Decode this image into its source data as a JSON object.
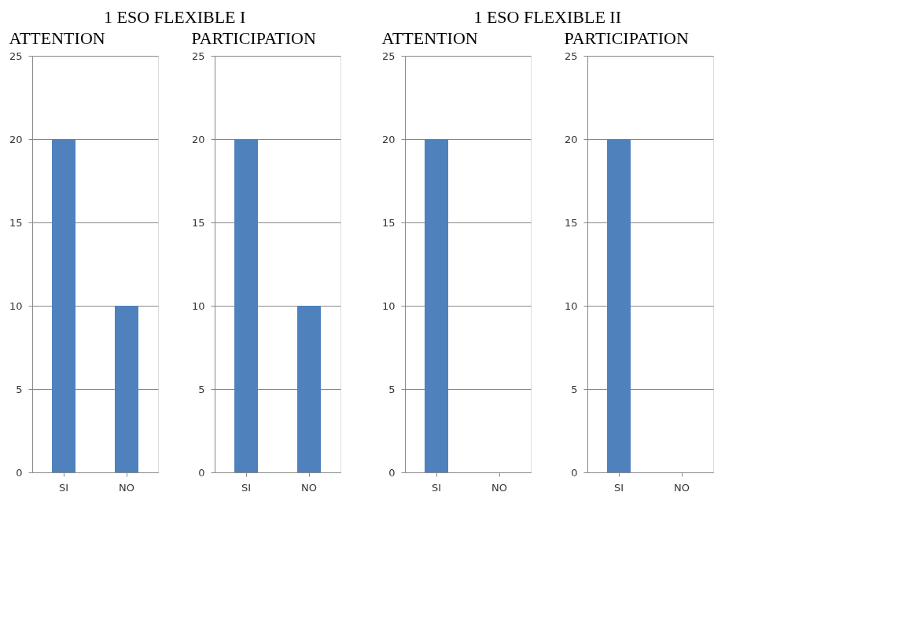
{
  "chart_data": [
    {
      "type": "bar",
      "title": "ATTENTION",
      "annotations": [
        "1 ESO FLEXIBLE I"
      ],
      "categories": [
        "SI",
        "NO"
      ],
      "values": [
        20,
        10
      ],
      "color": "#4f81bd",
      "ylim": [
        0,
        25
      ],
      "yticks": [
        0,
        5,
        10,
        15,
        20,
        25
      ],
      "grid": "y"
    },
    {
      "type": "bar",
      "title": "PARTICIPATION",
      "categories": [
        "SI",
        "NO"
      ],
      "values": [
        20,
        10
      ],
      "color": "#4f81bd",
      "ylim": [
        0,
        25
      ],
      "yticks": [
        0,
        5,
        10,
        15,
        20,
        25
      ],
      "grid": "y"
    },
    {
      "type": "bar",
      "title": "ATTENTION",
      "annotations": [
        "1 ESO FLEXIBLE II"
      ],
      "categories": [
        "SI",
        "NO"
      ],
      "values": [
        20,
        0
      ],
      "color": "#4f81bd",
      "ylim": [
        0,
        25
      ],
      "yticks": [
        0,
        5,
        10,
        15,
        20,
        25
      ],
      "grid": "y"
    },
    {
      "type": "bar",
      "title": "PARTICIPATION",
      "categories": [
        "SI",
        "NO"
      ],
      "values": [
        20,
        0
      ],
      "color": "#4f81bd",
      "ylim": [
        0,
        25
      ],
      "yticks": [
        0,
        5,
        10,
        15,
        20,
        25
      ],
      "grid": "y"
    }
  ]
}
